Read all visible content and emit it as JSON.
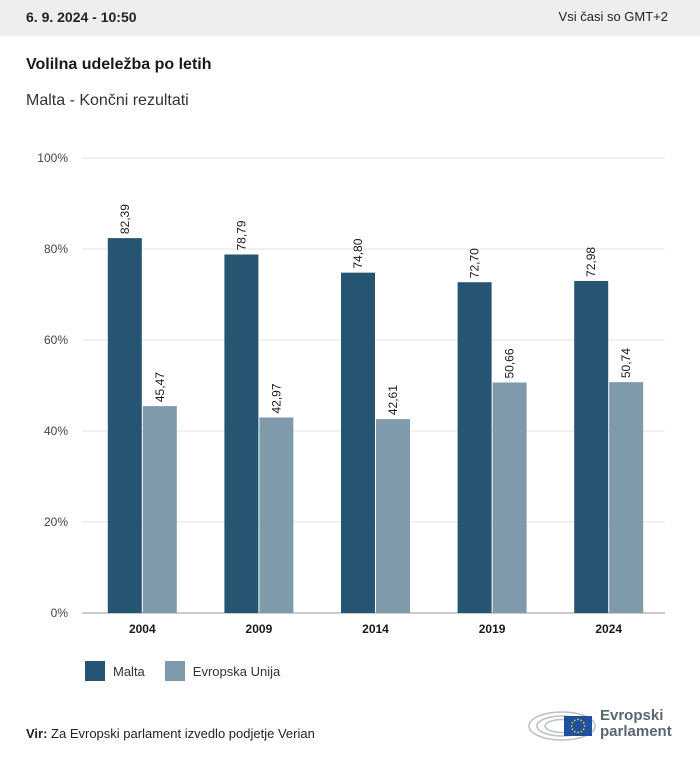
{
  "header": {
    "date": "6. 9. 2024 - 10:50",
    "timezone": "Vsi časi so GMT+2"
  },
  "title": "Volilna udeležba po letih",
  "subtitle": "Malta - Končni rezultati",
  "source": {
    "label": "Vir:",
    "text": " Za Evropski parlament izvedlo podjetje Verian"
  },
  "logo": {
    "line1": "Evropski",
    "line2": "parlament"
  },
  "colors": {
    "malta": "#265473",
    "eu": "#7f9aab",
    "grid": "#e3e3e3",
    "axis": "#9a9a9a"
  },
  "chart_data": {
    "type": "bar",
    "categories": [
      "2004",
      "2009",
      "2014",
      "2019",
      "2024"
    ],
    "series": [
      {
        "name": "Malta",
        "values": [
          82.39,
          78.79,
          74.8,
          72.7,
          72.98
        ],
        "labels": [
          "82,39",
          "78,79",
          "74,80",
          "72,70",
          "72,98"
        ]
      },
      {
        "name": "Evropska Unija",
        "values": [
          45.47,
          42.97,
          42.61,
          50.66,
          50.74
        ],
        "labels": [
          "45,47",
          "42,97",
          "42,61",
          "50,66",
          "50,74"
        ]
      }
    ],
    "yticks": [
      "0%",
      "20%",
      "40%",
      "60%",
      "80%",
      "100%"
    ],
    "ylim": [
      0,
      100
    ],
    "grid": true,
    "legend": "bottom-left"
  }
}
